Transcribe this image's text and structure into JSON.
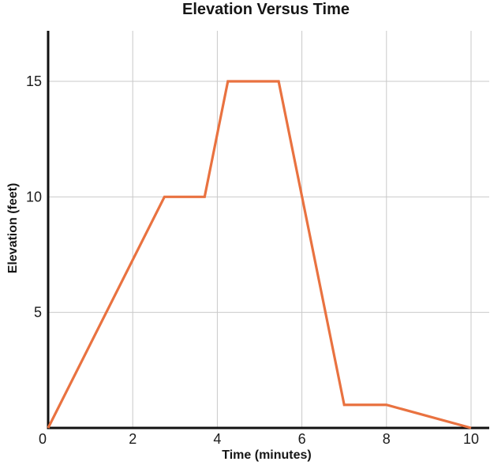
{
  "chart": {
    "title": "Elevation Versus Time",
    "xlabel": "Time (minutes)",
    "ylabel": "Elevation (feet)"
  },
  "chart_data": {
    "type": "line",
    "title": "Elevation Versus Time",
    "xlabel": "Time (minutes)",
    "ylabel": "Elevation (feet)",
    "series": [
      {
        "name": "elevation",
        "x": [
          0,
          2.75,
          3.7,
          4.25,
          5.45,
          7,
          8,
          10
        ],
        "y": [
          0,
          10,
          10,
          15,
          15,
          1,
          1,
          0
        ]
      }
    ],
    "xlim": [
      0,
      10.45
    ],
    "ylim": [
      0,
      17.2
    ],
    "x_ticks": [
      0,
      2,
      4,
      6,
      8,
      10
    ],
    "y_ticks": [
      5,
      10,
      15
    ],
    "grid": true,
    "legend_position": "none",
    "line_color": "#E97240",
    "grid_color": "#c9c9c9",
    "axis_color": "#111111",
    "text_color": "#1b1b1b"
  }
}
